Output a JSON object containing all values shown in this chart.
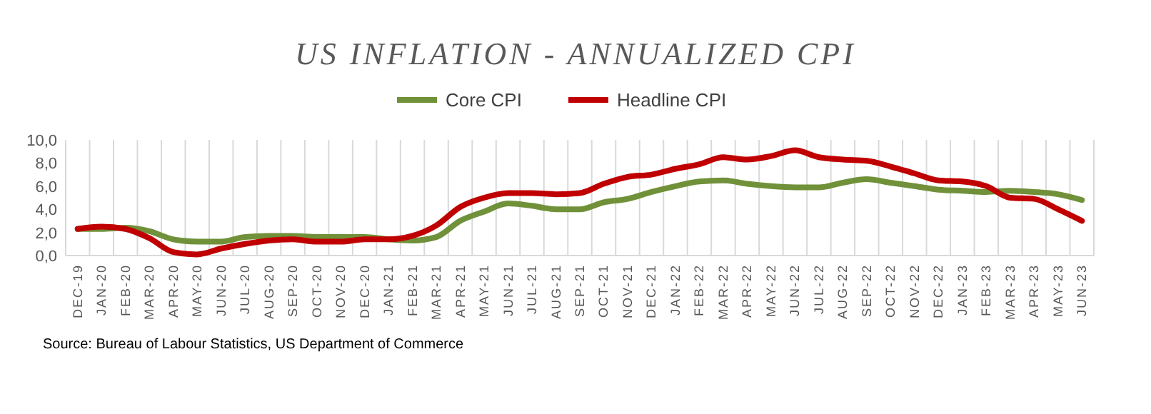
{
  "chart_data": {
    "type": "line",
    "title": "US INFLATION - ANNUALIZED CPI",
    "categories": [
      "DEC-19",
      "JAN-20",
      "FEB-20",
      "MAR-20",
      "APR-20",
      "MAY-20",
      "JUN-20",
      "JUL-20",
      "AUG-20",
      "SEP-20",
      "OCT-20",
      "NOV-20",
      "DEC-20",
      "JAN-21",
      "FEB-21",
      "MAR-21",
      "APR-21",
      "MAY-21",
      "JUN-21",
      "JUL-21",
      "AUG-21",
      "SEP-21",
      "OCT-21",
      "NOV-21",
      "DEC-21",
      "JAN-22",
      "FEB-22",
      "MAR-22",
      "APR-22",
      "MAY-22",
      "JUN-22",
      "JUL-22",
      "AUG-22",
      "SEP-22",
      "OCT-22",
      "NOV-22",
      "DEC-22",
      "JAN-23",
      "FEB-23",
      "MAR-23",
      "APR-23",
      "MAY-23",
      "JUN-23"
    ],
    "series": [
      {
        "name": "Core CPI",
        "color": "#70913a",
        "values": [
          2.3,
          2.3,
          2.4,
          2.1,
          1.4,
          1.2,
          1.2,
          1.6,
          1.7,
          1.7,
          1.6,
          1.6,
          1.6,
          1.4,
          1.3,
          1.6,
          3.0,
          3.8,
          4.5,
          4.3,
          4.0,
          4.0,
          4.6,
          4.9,
          5.5,
          6.0,
          6.4,
          6.5,
          6.2,
          6.0,
          5.9,
          5.9,
          6.3,
          6.6,
          6.3,
          6.0,
          5.7,
          5.6,
          5.5,
          5.6,
          5.5,
          5.3,
          4.8
        ]
      },
      {
        "name": "Headline CPI",
        "color": "#c00000",
        "values": [
          2.3,
          2.5,
          2.3,
          1.5,
          0.3,
          0.1,
          0.6,
          1.0,
          1.3,
          1.4,
          1.2,
          1.2,
          1.4,
          1.4,
          1.7,
          2.6,
          4.2,
          5.0,
          5.4,
          5.4,
          5.3,
          5.4,
          6.2,
          6.8,
          7.0,
          7.5,
          7.9,
          8.5,
          8.3,
          8.6,
          9.1,
          8.5,
          8.3,
          8.2,
          7.7,
          7.1,
          6.5,
          6.4,
          6.0,
          5.0,
          4.9,
          4.0,
          3.0
        ]
      }
    ],
    "ylim": [
      0,
      10
    ],
    "yticks": [
      {
        "value": 0,
        "label": "0,0"
      },
      {
        "value": 2,
        "label": "2,0"
      },
      {
        "value": 4,
        "label": "4,0"
      },
      {
        "value": 6,
        "label": "6,0"
      },
      {
        "value": 8,
        "label": "8,0"
      },
      {
        "value": 10,
        "label": "10,0"
      }
    ],
    "grid": "x",
    "legend": "top",
    "marker": "none",
    "line_style": "solid",
    "annotations": [
      "Source: Bureau of Labour Statistics, US Department of Commerce"
    ]
  }
}
